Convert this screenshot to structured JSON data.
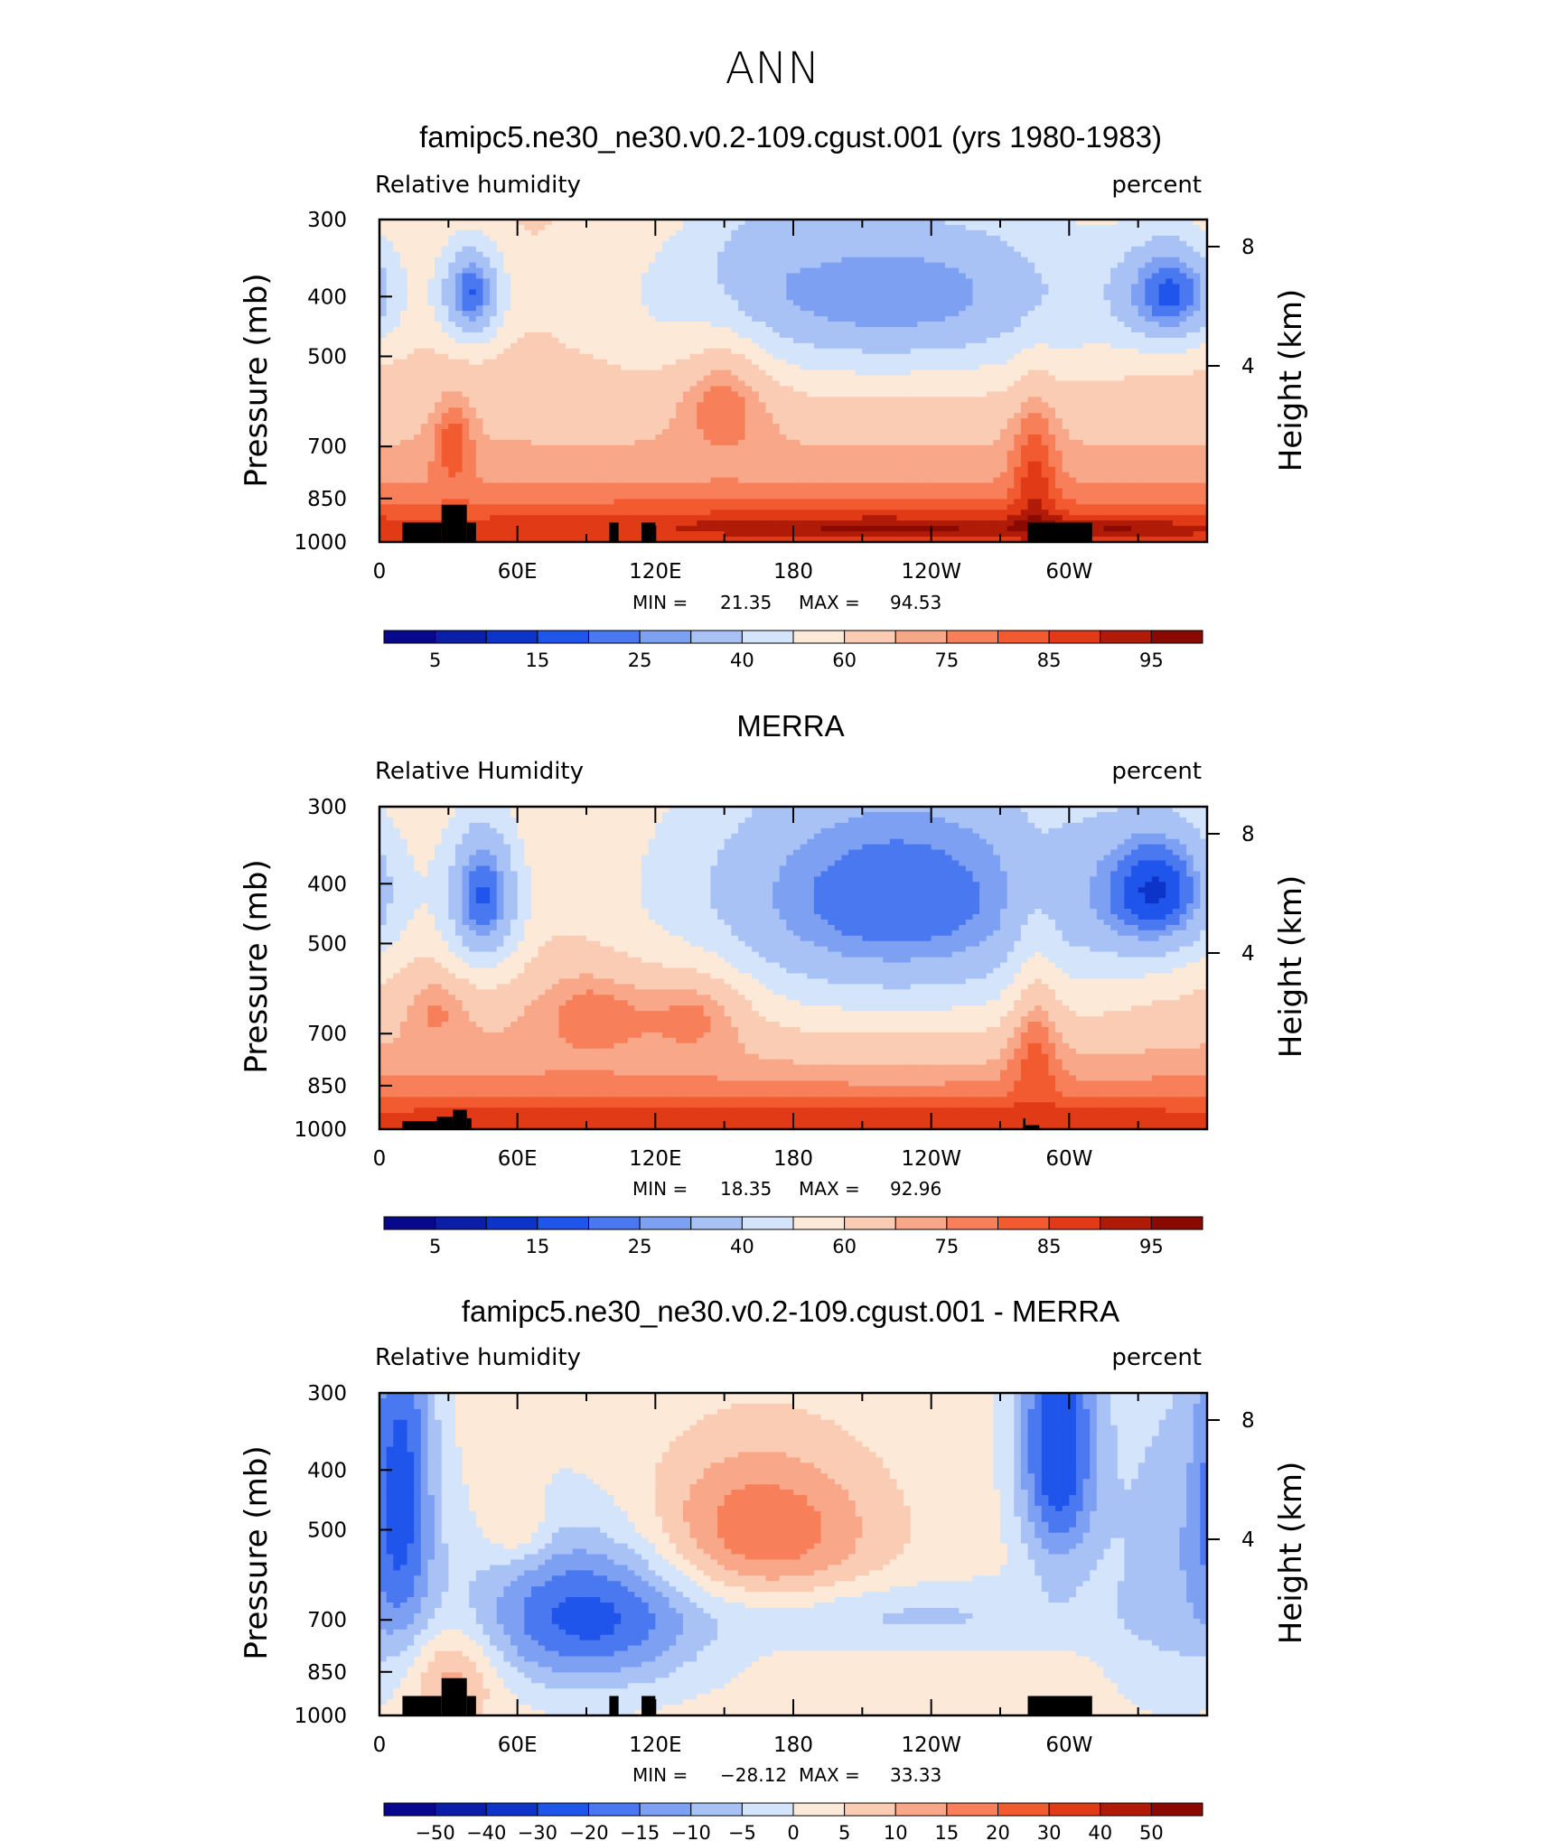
{
  "page_title": "ANN",
  "colors": {
    "seq_levels": [
      "#08088c",
      "#0a1ea8",
      "#0c34c8",
      "#1f55ea",
      "#4a78f0",
      "#7ea0f2",
      "#a9c2f6",
      "#d4e4fa",
      "#fde9d8",
      "#fbccb4",
      "#f9a789",
      "#f7805b",
      "#f25a30",
      "#e03a16",
      "#b01b08",
      "#8a0a03"
    ],
    "diff_levels": [
      "#08088c",
      "#0a1ea8",
      "#0c34c8",
      "#1f55ea",
      "#4a78f0",
      "#7ea0f2",
      "#a9c2f6",
      "#d4e4fa",
      "#fde9d8",
      "#fbccb4",
      "#f9a789",
      "#f7805b",
      "#f25a30",
      "#e03a16",
      "#b01b08",
      "#8a0a03"
    ],
    "topography": "#000000"
  },
  "chart_data": [
    {
      "type": "heatmap",
      "title": "famipc5.ne30_ne30.v0.2-109.cgust.001 (yrs 1980-1983)",
      "variable": "Relative humidity",
      "units": "percent",
      "ylabel": "Pressure (mb)",
      "ylabel_right": "Height (km)",
      "y_ticks": [
        "300",
        "400",
        "500",
        "700",
        "850",
        "1000"
      ],
      "y_right_ticks": [
        "8",
        "4"
      ],
      "x_ticks": [
        "0",
        "60E",
        "120E",
        "180",
        "120W",
        "60W"
      ],
      "min_label": "MIN =",
      "min": "21.35",
      "max_label": "MAX =",
      "max": "94.53",
      "colorbar_labels": [
        "5",
        "15",
        "25",
        "40",
        "60",
        "75",
        "85",
        "95"
      ],
      "features": [
        {
          "lon": 220,
          "p": 395,
          "v": 25,
          "rx": 75,
          "rp": 100
        },
        {
          "lon": 40,
          "p": 395,
          "v": 22,
          "rx": 10,
          "rp": 55
        },
        {
          "lon": 345,
          "p": 395,
          "v": 28,
          "rx": 16,
          "rp": 60
        },
        {
          "lon": 150,
          "p": 570,
          "v": 82,
          "rx": 14,
          "rp": 100
        },
        {
          "lon": 32,
          "p": 700,
          "v": 84,
          "rx": 6,
          "rp": 80
        },
        {
          "lon": 180,
          "p": 950,
          "v": 88,
          "rx": 170,
          "rp": 55
        },
        {
          "lon": 285,
          "p": 860,
          "v": 88,
          "rx": 7,
          "rp": 200
        },
        {
          "lon": 225,
          "p": 950,
          "v": 91,
          "rx": 60,
          "rp": 25
        },
        {
          "lon": 330,
          "p": 960,
          "v": 90,
          "rx": 25,
          "rp": 25
        },
        {
          "lon": 160,
          "p": 300,
          "v": 58,
          "rx": 15,
          "rp": 80
        }
      ]
    },
    {
      "type": "heatmap",
      "title": "MERRA",
      "variable": "Relative Humidity",
      "units": "percent",
      "ylabel": "Pressure (mb)",
      "ylabel_right": "Height (km)",
      "y_ticks": [
        "300",
        "400",
        "500",
        "700",
        "850",
        "1000"
      ],
      "y_right_ticks": [
        "8",
        "4"
      ],
      "x_ticks": [
        "0",
        "60E",
        "120E",
        "180",
        "120W",
        "60W"
      ],
      "min_label": "MIN =",
      "min": "18.35",
      "max_label": "MAX =",
      "max": "92.96",
      "colorbar_labels": [
        "5",
        "15",
        "25",
        "40",
        "60",
        "75",
        "85",
        "95"
      ],
      "features": [
        {
          "lon": 225,
          "p": 420,
          "v": 20,
          "rx": 75,
          "rp": 160
        },
        {
          "lon": 45,
          "p": 420,
          "v": 22,
          "rx": 12,
          "rp": 90
        },
        {
          "lon": 340,
          "p": 410,
          "v": 28,
          "rx": 20,
          "rp": 80
        },
        {
          "lon": 95,
          "p": 640,
          "v": 82,
          "rx": 20,
          "rp": 80
        },
        {
          "lon": 140,
          "p": 640,
          "v": 84,
          "rx": 16,
          "rp": 80
        },
        {
          "lon": 25,
          "p": 640,
          "v": 78,
          "rx": 10,
          "rp": 70
        },
        {
          "lon": 285,
          "p": 720,
          "v": 86,
          "rx": 8,
          "rp": 200
        },
        {
          "lon": 180,
          "p": 960,
          "v": 89,
          "rx": 175,
          "rp": 35
        }
      ]
    },
    {
      "type": "heatmap",
      "title": "famipc5.ne30_ne30.v0.2-109.cgust.001 - MERRA",
      "variable": "Relative humidity",
      "units": "percent",
      "ylabel": "Pressure (mb)",
      "ylabel_right": "Height (km)",
      "y_ticks": [
        "300",
        "400",
        "500",
        "700",
        "850",
        "1000"
      ],
      "y_right_ticks": [
        "8",
        "4"
      ],
      "x_ticks": [
        "0",
        "60E",
        "120E",
        "180",
        "120W",
        "60W"
      ],
      "min_label": "MIN =",
      "min": "−28.12",
      "max_label": "MAX =",
      "max": "33.33",
      "colorbar_labels": [
        "−50",
        "−40",
        "−30",
        "−20",
        "−15",
        "−10",
        "−5",
        "0",
        "5",
        "10",
        "15",
        "20",
        "30",
        "40",
        "50"
      ],
      "features": [
        {
          "lon": 295,
          "p": 360,
          "v": -28,
          "rx": 12,
          "rp": 140
        },
        {
          "lon": 10,
          "p": 420,
          "v": -20,
          "rx": 10,
          "rp": 220
        },
        {
          "lon": 90,
          "p": 690,
          "v": -24,
          "rx": 35,
          "rp": 140
        },
        {
          "lon": 165,
          "p": 500,
          "v": 18,
          "rx": 35,
          "rp": 100
        },
        {
          "lon": 32,
          "p": 860,
          "v": 12,
          "rx": 14,
          "rp": 110
        },
        {
          "lon": 345,
          "p": 550,
          "v": -10,
          "rx": 22,
          "rp": 250
        },
        {
          "lon": 60,
          "p": 500,
          "v": 8,
          "rx": 10,
          "rp": 50
        },
        {
          "lon": 230,
          "p": 690,
          "v": -8,
          "rx": 55,
          "rp": 60
        }
      ]
    }
  ]
}
